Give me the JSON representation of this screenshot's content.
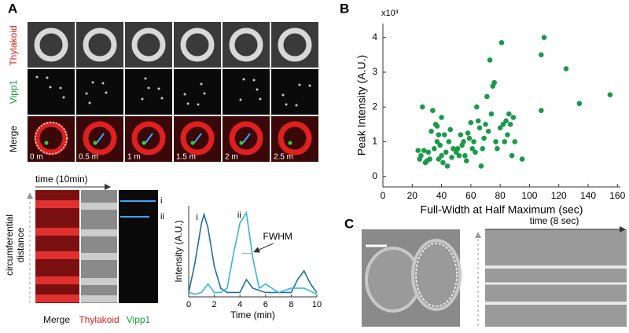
{
  "figure": {
    "panels": [
      "A",
      "B",
      "C"
    ],
    "a": {
      "row_labels": [
        "Thylakoid",
        "Vipp1",
        "Merge"
      ],
      "times": [
        "0 m",
        "0.5 m",
        "1 m",
        "1.5 m",
        "2 m",
        "2.5 m"
      ],
      "kymo_time": "time (10min)",
      "kymo_axis": [
        "circumferential",
        "distance"
      ],
      "kymo_labels": [
        "Merge",
        "Thylakoid",
        "Vipp1"
      ],
      "kymo_marks": [
        "i",
        "ii"
      ]
    },
    "c": {
      "kymo_time": "time (8 sec)"
    }
  },
  "chart_data": [
    {
      "type": "line",
      "x_label": "Time (min)",
      "y_label": "Intensity (A.U.)",
      "xlim": [
        0,
        10
      ],
      "xticks": [
        0,
        2,
        4,
        6,
        8,
        10
      ],
      "ylim": [
        0,
        1.05
      ],
      "annotation": "FWHM",
      "series": [
        {
          "name": "i",
          "color": "#1f6f9f",
          "x": [
            0,
            0.5,
            1,
            1.2,
            1.5,
            2,
            2.5,
            3,
            4,
            4.5,
            5,
            6,
            7,
            8,
            8.5,
            9,
            9.5,
            10
          ],
          "values": [
            0.05,
            0.4,
            0.85,
            0.95,
            0.8,
            0.35,
            0.1,
            0.05,
            0.05,
            0.2,
            0.1,
            0.05,
            0.05,
            0.05,
            0.2,
            0.3,
            0.15,
            0.05
          ]
        },
        {
          "name": "ii",
          "color": "#33b5e5",
          "x": [
            0,
            0.5,
            1,
            1.5,
            2,
            2.5,
            3,
            3.5,
            4,
            4.5,
            5,
            5.5,
            6,
            7,
            8,
            9,
            10
          ],
          "values": [
            0.05,
            0.03,
            0.05,
            0.15,
            0.05,
            0.05,
            0.1,
            0.5,
            0.85,
            0.97,
            0.45,
            0.1,
            0.15,
            0.05,
            0.1,
            0.1,
            0.03
          ]
        }
      ]
    },
    {
      "type": "scatter",
      "x_label": "Full-Width at Half Maximum (sec)",
      "y_label": "Peak Intensity (A.U.)",
      "y_multiplier": "x10³",
      "color": "#1a9a4a",
      "xlim": [
        0,
        162
      ],
      "xticks": [
        0,
        20,
        40,
        60,
        80,
        100,
        120,
        140,
        160
      ],
      "ylim": [
        -0.3,
        4.4
      ],
      "yticks": [
        0,
        1,
        2,
        3,
        4
      ],
      "x": [
        24,
        25,
        26,
        27,
        28,
        29,
        30,
        31,
        32,
        33,
        34,
        35,
        36,
        37,
        37,
        38,
        38,
        39,
        40,
        40,
        41,
        42,
        43,
        44,
        45,
        46,
        47,
        48,
        50,
        51,
        52,
        53,
        54,
        55,
        56,
        57,
        58,
        59,
        60,
        61,
        62,
        63,
        64,
        65,
        66,
        67,
        68,
        69,
        70,
        71,
        72,
        73,
        74,
        75,
        76,
        77,
        78,
        80,
        81,
        82,
        83,
        84,
        85,
        86,
        87,
        88,
        89,
        90,
        95,
        108,
        108,
        110,
        125,
        134,
        155
      ],
      "values": [
        0.75,
        0.5,
        0.6,
        2.0,
        0.75,
        0.4,
        0.45,
        0.7,
        0.5,
        1.3,
        1.9,
        0.8,
        1.5,
        1.45,
        1.0,
        1.2,
        0.5,
        0.9,
        0.6,
        1.7,
        0.4,
        1.2,
        0.7,
        0.3,
        1.0,
        1.35,
        0.55,
        0.8,
        0.7,
        0.8,
        0.6,
        1.2,
        0.9,
        1.0,
        0.6,
        0.45,
        1.25,
        1.1,
        1.55,
        0.8,
        1.0,
        0.7,
        2.0,
        1.6,
        1.4,
        0.3,
        0.8,
        1.1,
        1.5,
        2.3,
        1.3,
        3.35,
        1.8,
        2.6,
        2.7,
        1.0,
        0.8,
        1.4,
        3.85,
        1.5,
        1.0,
        1.6,
        1.2,
        1.8,
        1.5,
        0.6,
        1.7,
        1.0,
        0.5,
        1.9,
        3.5,
        4.0,
        3.1,
        2.1,
        2.35
      ]
    }
  ]
}
